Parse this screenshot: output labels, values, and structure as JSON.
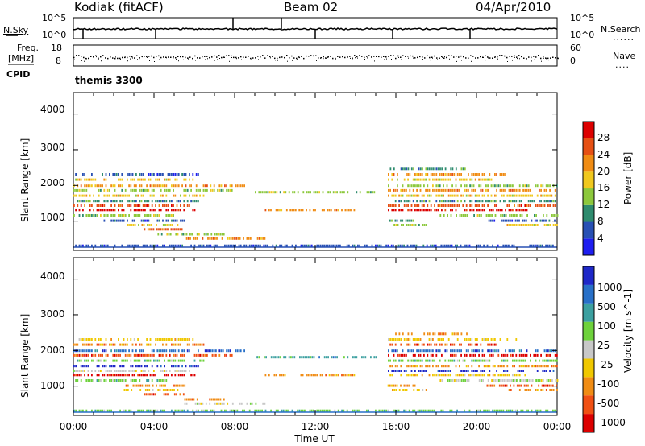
{
  "header": {
    "title": "Kodiak (fitACF)",
    "beam": "Beam 02",
    "date": "04/Apr/2010"
  },
  "top_panels": {
    "nsky_label": "N.Sky",
    "nsky_ticks": [
      "10^5",
      "10^0"
    ],
    "nsearch_label": "N.Search",
    "nsearch_ticks": [
      "10^5",
      "10^0"
    ],
    "freq_label": "Freq.",
    "freq_unit": "[MHz]",
    "freq_ticks": [
      "18",
      "8"
    ],
    "nave_label": "Nave",
    "nave_ticks": [
      "60",
      "0"
    ],
    "cpid_label": "CPID",
    "cpid_value": "themis 3300"
  },
  "x_axis": {
    "label": "Time UT",
    "ticks": [
      "00:00",
      "04:00",
      "08:00",
      "12:00",
      "16:00",
      "20:00",
      "00:00"
    ]
  },
  "chart_data": [
    {
      "type": "heatmap",
      "quantity": "Power",
      "ylabel": "Slant Range [km]",
      "yticks": [
        1000,
        2000,
        3000,
        4000
      ],
      "ylim": [
        180,
        4600
      ],
      "xlim_hours": [
        0,
        24
      ],
      "colorbar_label": "Power [dB]",
      "colorbar_ticks": [
        "4",
        "8",
        "12",
        "16",
        "20",
        "24",
        "28"
      ],
      "colorbar_colors": [
        "#1e1ef0",
        "#2850b4",
        "#2e8b6e",
        "#8cc83c",
        "#f0c81e",
        "#f08c14",
        "#e65014",
        "#dc0000"
      ],
      "echo_bands": [
        {
          "start": 0.0,
          "end": 6.2,
          "range": 2300,
          "level": 1
        },
        {
          "start": 0.0,
          "end": 6.0,
          "range": 2150,
          "level": 4
        },
        {
          "start": 0.0,
          "end": 8.5,
          "range": 1980,
          "level": 5
        },
        {
          "start": 0.0,
          "end": 8.0,
          "range": 1850,
          "level": 3
        },
        {
          "start": 0.0,
          "end": 6.5,
          "range": 1700,
          "level": 4
        },
        {
          "start": 0.0,
          "end": 6.2,
          "range": 1550,
          "level": 2
        },
        {
          "start": 0.0,
          "end": 5.8,
          "range": 1420,
          "level": 6
        },
        {
          "start": 0.0,
          "end": 6.0,
          "range": 1300,
          "level": 7
        },
        {
          "start": 0.0,
          "end": 5.0,
          "range": 1150,
          "level": 3
        },
        {
          "start": 1.5,
          "end": 5.5,
          "range": 1000,
          "level": 1
        },
        {
          "start": 2.5,
          "end": 5.2,
          "range": 880,
          "level": 4
        },
        {
          "start": 3.5,
          "end": 5.5,
          "range": 760,
          "level": 6
        },
        {
          "start": 4.0,
          "end": 7.5,
          "range": 620,
          "level": 3
        },
        {
          "start": 5.5,
          "end": 9.5,
          "range": 500,
          "level": 5
        },
        {
          "start": 0.0,
          "end": 24.0,
          "range": 300,
          "level": 1
        },
        {
          "start": 15.7,
          "end": 19.5,
          "range": 2450,
          "level": 2
        },
        {
          "start": 15.6,
          "end": 22.0,
          "range": 2300,
          "level": 5
        },
        {
          "start": 15.6,
          "end": 21.0,
          "range": 2150,
          "level": 4
        },
        {
          "start": 15.6,
          "end": 24.0,
          "range": 1980,
          "level": 3
        },
        {
          "start": 15.6,
          "end": 24.0,
          "range": 1850,
          "level": 5
        },
        {
          "start": 15.6,
          "end": 24.0,
          "range": 1700,
          "level": 4
        },
        {
          "start": 15.6,
          "end": 24.0,
          "range": 1550,
          "level": 2
        },
        {
          "start": 15.6,
          "end": 24.0,
          "range": 1420,
          "level": 6
        },
        {
          "start": 15.6,
          "end": 22.5,
          "range": 1300,
          "level": 7
        },
        {
          "start": 18.0,
          "end": 24.0,
          "range": 1150,
          "level": 3
        },
        {
          "start": 15.5,
          "end": 17.0,
          "range": 1000,
          "level": 2
        },
        {
          "start": 20.5,
          "end": 24.0,
          "range": 1000,
          "level": 1
        },
        {
          "start": 21.5,
          "end": 24.0,
          "range": 880,
          "level": 4
        },
        {
          "start": 15.8,
          "end": 17.5,
          "range": 880,
          "level": 3
        },
        {
          "start": 9.0,
          "end": 15.0,
          "range": 1800,
          "level": 3
        },
        {
          "start": 9.5,
          "end": 14.0,
          "range": 1300,
          "level": 5
        }
      ]
    },
    {
      "type": "heatmap",
      "quantity": "Velocity",
      "ylabel": "Slant Range [km]",
      "yticks": [
        1000,
        2000,
        3000,
        4000
      ],
      "ylim": [
        180,
        4600
      ],
      "xlim_hours": [
        0,
        24
      ],
      "colorbar_label": "Velocity [m s^-1]",
      "colorbar_ticks": [
        "1000",
        "500",
        "100",
        "25",
        "-25",
        "-100",
        "-500",
        "-1000"
      ],
      "colorbar_colors": [
        "#1e28c8",
        "#2870c8",
        "#3ca0a0",
        "#6ed23c",
        "#c8c8c8",
        "#f0c800",
        "#f08c14",
        "#f05014",
        "#dc0000"
      ],
      "echo_bands": [
        {
          "start": 0.0,
          "end": 6.0,
          "range": 2300,
          "level": 5
        },
        {
          "start": 0.0,
          "end": 6.5,
          "range": 2150,
          "level": 6
        },
        {
          "start": 0.0,
          "end": 8.5,
          "range": 1980,
          "level": 1
        },
        {
          "start": 0.0,
          "end": 8.0,
          "range": 1850,
          "level": 7
        },
        {
          "start": 0.0,
          "end": 6.5,
          "range": 1700,
          "level": 3
        },
        {
          "start": 0.0,
          "end": 6.2,
          "range": 1550,
          "level": 0
        },
        {
          "start": 0.0,
          "end": 5.8,
          "range": 1420,
          "level": 4
        },
        {
          "start": 0.0,
          "end": 6.0,
          "range": 1300,
          "level": 8
        },
        {
          "start": 0.0,
          "end": 5.0,
          "range": 1150,
          "level": 3
        },
        {
          "start": 2.5,
          "end": 5.5,
          "range": 1000,
          "level": 6
        },
        {
          "start": 2.5,
          "end": 5.2,
          "range": 880,
          "level": 5
        },
        {
          "start": 3.5,
          "end": 5.5,
          "range": 760,
          "level": 7
        },
        {
          "start": 5.5,
          "end": 7.5,
          "range": 620,
          "level": 6
        },
        {
          "start": 5.5,
          "end": 9.5,
          "range": 500,
          "level": 4
        },
        {
          "start": 0.0,
          "end": 24.0,
          "range": 300,
          "level": 3
        },
        {
          "start": 15.7,
          "end": 19.5,
          "range": 2450,
          "level": 6
        },
        {
          "start": 15.6,
          "end": 22.0,
          "range": 2300,
          "level": 5
        },
        {
          "start": 15.6,
          "end": 21.0,
          "range": 2150,
          "level": 7
        },
        {
          "start": 15.6,
          "end": 24.0,
          "range": 1980,
          "level": 1
        },
        {
          "start": 15.6,
          "end": 24.0,
          "range": 1850,
          "level": 8
        },
        {
          "start": 15.6,
          "end": 24.0,
          "range": 1700,
          "level": 3
        },
        {
          "start": 15.6,
          "end": 24.0,
          "range": 1550,
          "level": 6
        },
        {
          "start": 15.6,
          "end": 24.0,
          "range": 1420,
          "level": 0
        },
        {
          "start": 15.6,
          "end": 22.5,
          "range": 1300,
          "level": 5
        },
        {
          "start": 18.0,
          "end": 24.0,
          "range": 1150,
          "level": 4
        },
        {
          "start": 15.5,
          "end": 17.0,
          "range": 1000,
          "level": 6
        },
        {
          "start": 20.5,
          "end": 24.0,
          "range": 1000,
          "level": 7
        },
        {
          "start": 21.5,
          "end": 24.0,
          "range": 880,
          "level": 6
        },
        {
          "start": 15.8,
          "end": 17.5,
          "range": 880,
          "level": 5
        },
        {
          "start": 9.0,
          "end": 15.0,
          "range": 1800,
          "level": 2
        },
        {
          "start": 9.5,
          "end": 14.0,
          "range": 1300,
          "level": 6
        }
      ]
    }
  ]
}
